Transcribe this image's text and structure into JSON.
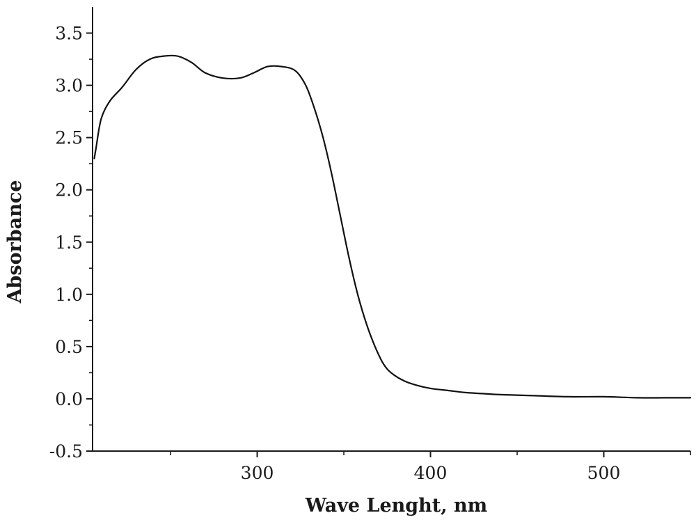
{
  "chart_data": {
    "type": "line",
    "title": "",
    "xlabel": "Wave Lenght, nm",
    "ylabel": "Absorbance",
    "xlim": [
      205,
      550
    ],
    "ylim": [
      -0.5,
      3.75
    ],
    "x_ticks": [
      300,
      400,
      500
    ],
    "x_tick_labels": [
      "300",
      "400",
      "500"
    ],
    "y_ticks": [
      -0.5,
      0.0,
      0.5,
      1.0,
      1.5,
      2.0,
      2.5,
      3.0,
      3.5
    ],
    "y_tick_labels": [
      "-0.5",
      "0.0",
      "0.5",
      "1.0",
      "1.5",
      "2.0",
      "2.5",
      "3.0",
      "3.5"
    ],
    "grid": false,
    "line_color": "#111111",
    "series": [
      {
        "x": [
          206,
          207,
          210,
          215,
          222,
          230,
          238,
          246,
          254,
          262,
          270,
          280,
          290,
          298,
          306,
          314,
          322,
          328,
          333,
          338,
          343,
          348,
          353,
          358,
          363,
          368,
          373,
          378,
          385,
          392,
          400,
          410,
          420,
          430,
          440,
          460,
          480,
          500,
          520,
          535,
          550
        ],
        "y": [
          2.3,
          2.4,
          2.68,
          2.85,
          2.98,
          3.15,
          3.25,
          3.28,
          3.28,
          3.22,
          3.12,
          3.07,
          3.07,
          3.12,
          3.18,
          3.18,
          3.14,
          3.0,
          2.78,
          2.5,
          2.15,
          1.75,
          1.35,
          1.0,
          0.72,
          0.5,
          0.33,
          0.24,
          0.17,
          0.13,
          0.1,
          0.08,
          0.06,
          0.05,
          0.04,
          0.03,
          0.02,
          0.02,
          0.01,
          0.01,
          0.01
        ]
      }
    ]
  }
}
